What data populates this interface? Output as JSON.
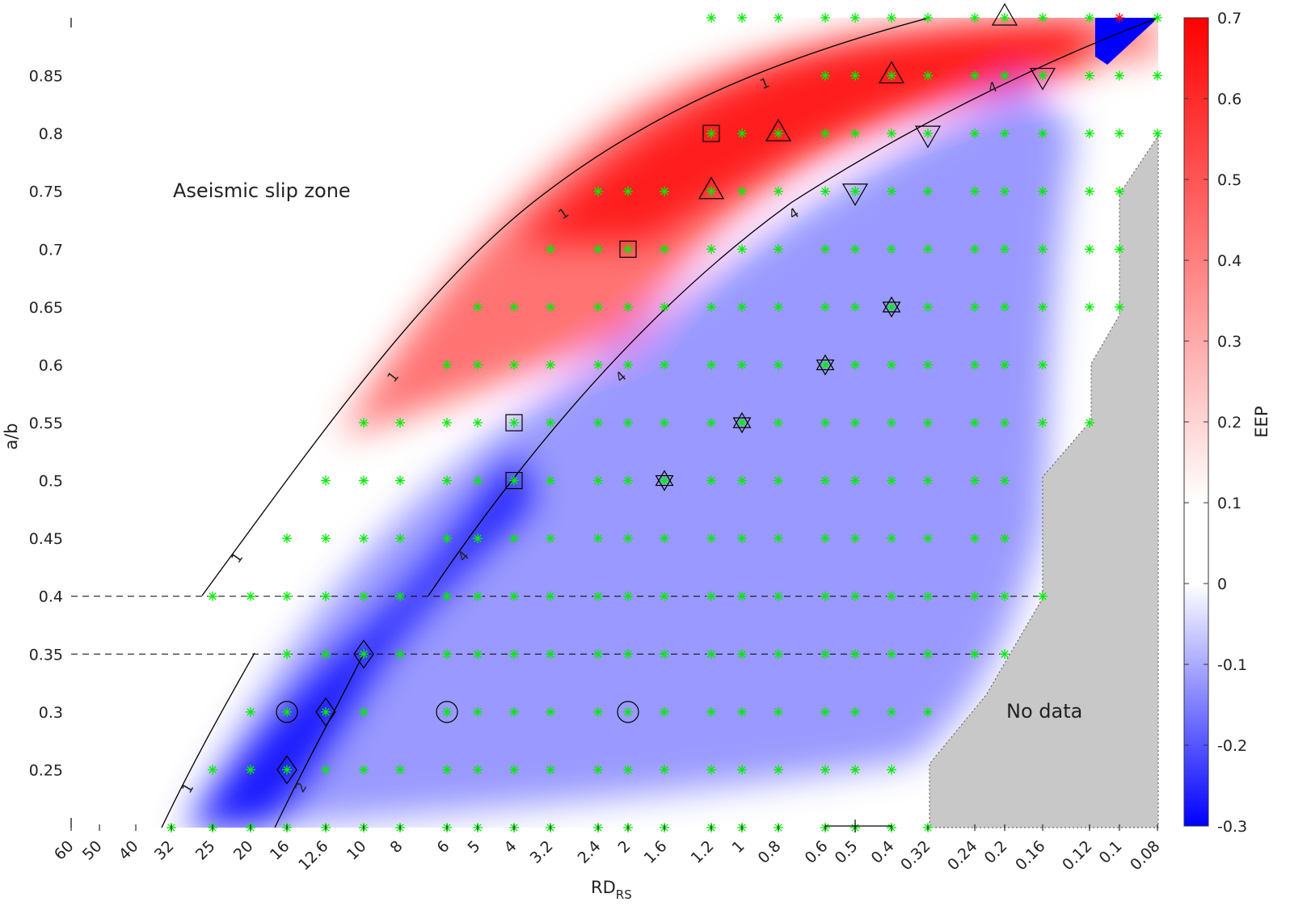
{
  "chart_data": {
    "type": "heatmap",
    "xlabel": "RD",
    "xlabel_subscript": "RS",
    "ylabel": "a/b",
    "colorbar_label": "EEP",
    "colorbar_ticks": [
      "0.7",
      "0.6",
      "0.5",
      "0.4",
      "0.3",
      "0.2",
      "0.1",
      "0",
      "-0.1",
      "-0.2",
      "-0.3"
    ],
    "colorbar_range": [
      -0.3,
      0.7
    ],
    "colormap": {
      "low": "#0000ff",
      "mid": "#ffffff",
      "high": "#ff0000"
    },
    "x_tick_labels": [
      "60",
      "50",
      "40",
      "32",
      "25",
      "20",
      "16",
      "12.6",
      "10",
      "8",
      "6",
      "5",
      "4",
      "3.2",
      "2.4",
      "2",
      "1.6",
      "1.2",
      "1",
      "0.8",
      "0.6",
      "0.5",
      "0.4",
      "0.32",
      "0.24",
      "0.2",
      "0.16",
      "0.12",
      "0.1",
      "0.08"
    ],
    "y_tick_labels": [
      "0.85",
      "0.8",
      "0.75",
      "0.7",
      "0.65",
      "0.6",
      "0.55",
      "0.5",
      "0.45",
      "0.4",
      "0.35",
      "0.3",
      "0.25"
    ],
    "ylim": [
      0.2,
      0.9
    ],
    "annotations": {
      "aseismic": "Aseismic slip zone",
      "nodata": "No data"
    },
    "contour_labels": {
      "one": "1",
      "two": "2",
      "four": "4"
    },
    "dashed_lines_ab": [
      0.4,
      0.35
    ],
    "nodata_color": "#c8c8c8",
    "marker_color": "#00ee00",
    "markers": {
      "square": [
        [
          "1.2",
          0.8
        ],
        [
          "2",
          0.7
        ],
        [
          "4",
          0.55
        ],
        [
          "4",
          0.5
        ]
      ],
      "triangle_up": [
        [
          "0.2",
          0.9
        ],
        [
          "0.4",
          0.85
        ],
        [
          "0.8",
          0.8
        ],
        [
          "1.2",
          0.75
        ]
      ],
      "triangle_down": [
        [
          "0.16",
          0.85
        ],
        [
          "0.32",
          0.8
        ],
        [
          "0.5",
          0.75
        ]
      ],
      "hexagram": [
        [
          "0.4",
          0.65
        ],
        [
          "0.6",
          0.6
        ],
        [
          "1",
          0.55
        ],
        [
          "1.6",
          0.5
        ]
      ],
      "diamond": [
        [
          "10",
          0.35
        ],
        [
          "12.6",
          0.3
        ],
        [
          "16",
          0.25
        ]
      ],
      "circle": [
        [
          "16",
          0.3
        ],
        [
          "6",
          0.3
        ],
        [
          "2",
          0.3
        ]
      ]
    }
  }
}
